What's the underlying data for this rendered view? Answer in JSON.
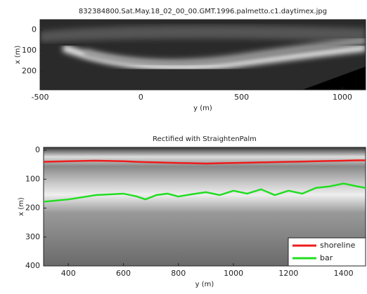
{
  "chart_data": [
    {
      "type": "image",
      "title": "832384800.Sat.May.18_02_00_00.GMT.1996.palmetto.c1.daytimex.jpg",
      "xlabel": "y (m)",
      "ylabel": "x (m)",
      "xlim": [
        -500,
        1115
      ],
      "ylim": [
        290,
        -50
      ],
      "xticks": [
        -500,
        0,
        500,
        1000
      ],
      "yticks": [
        0,
        100,
        200
      ]
    },
    {
      "type": "line",
      "title": "Rectified with StraightenPalm",
      "xlabel": "y (m)",
      "ylabel": "x (m)",
      "xlim": [
        310,
        1480
      ],
      "ylim": [
        400,
        -10
      ],
      "xticks": [
        400,
        600,
        800,
        1000,
        1200,
        1400
      ],
      "yticks": [
        0,
        100,
        200,
        300,
        400
      ],
      "legend": "lower right",
      "x": [
        310,
        400,
        500,
        600,
        650,
        680,
        720,
        760,
        800,
        850,
        900,
        950,
        1000,
        1050,
        1100,
        1150,
        1200,
        1250,
        1300,
        1350,
        1400,
        1450,
        1480
      ],
      "series": [
        {
          "name": "shoreline",
          "color": "#ee1c1c",
          "values": [
            40,
            38,
            36,
            38,
            40,
            41,
            42,
            43,
            44,
            45,
            46,
            45,
            44,
            43,
            42,
            41,
            40,
            39,
            38,
            37,
            36,
            35,
            35
          ]
        },
        {
          "name": "bar",
          "color": "#22dd22",
          "values": [
            178,
            170,
            155,
            150,
            160,
            170,
            155,
            150,
            160,
            152,
            145,
            155,
            140,
            150,
            135,
            155,
            140,
            150,
            130,
            125,
            115,
            125,
            130
          ]
        }
      ]
    }
  ]
}
